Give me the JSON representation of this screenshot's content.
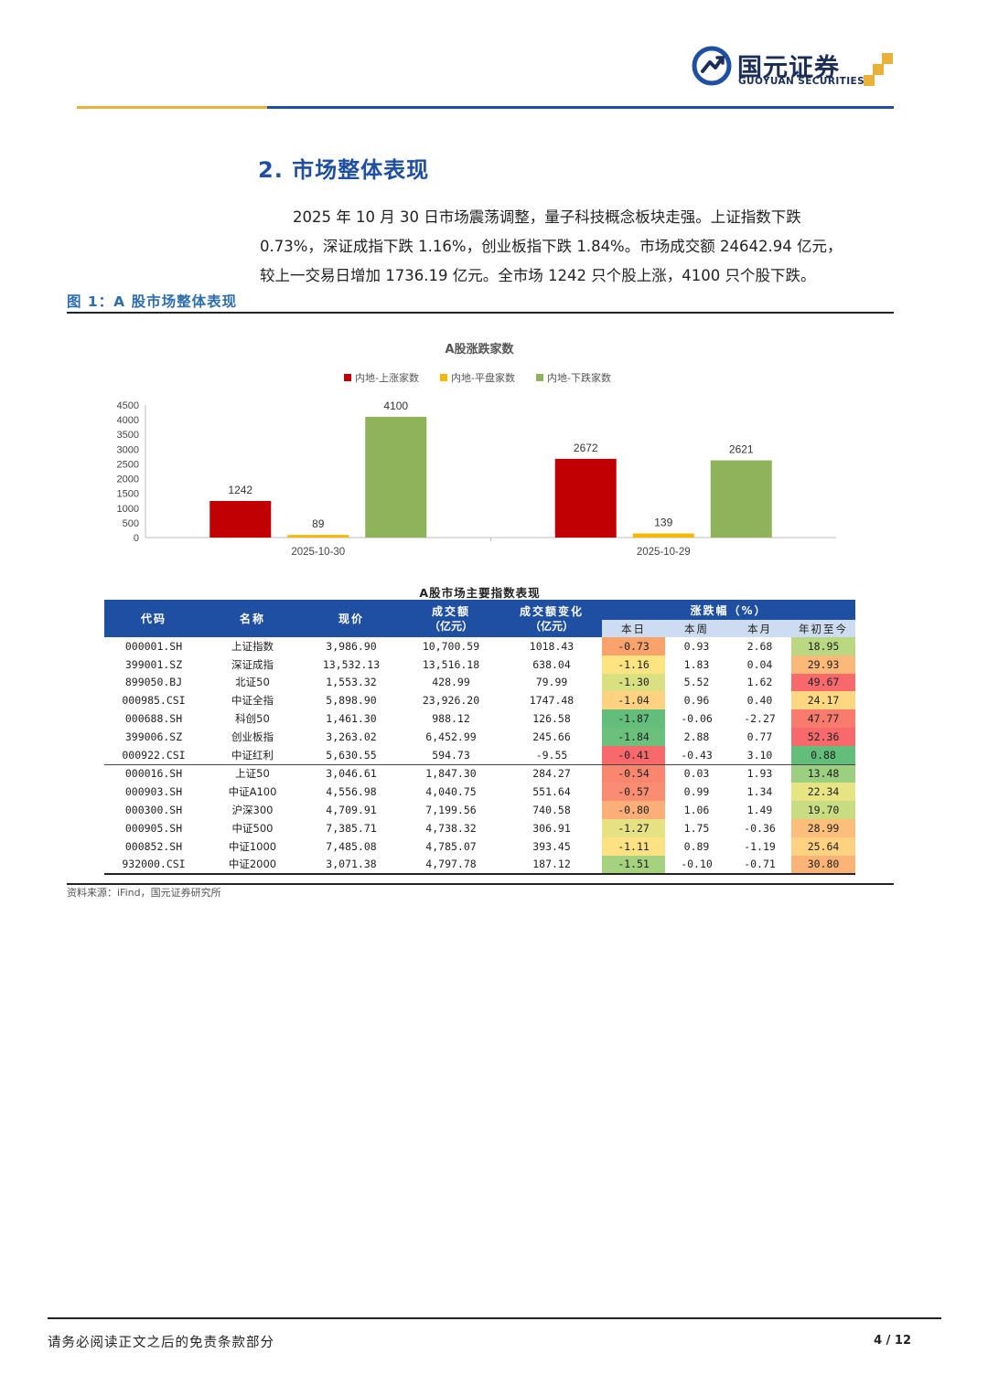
{
  "header": {
    "logo_cn": "国元证券",
    "logo_en": "GUOYUAN SECURITIES",
    "colors": {
      "navy": "#1b2e5a",
      "blue": "#1f4fa0",
      "gold": "#e8b23a"
    }
  },
  "section": {
    "title": "2. 市场整体表现",
    "paragraph_lines": [
      "2025 年 10 月 30 日市场震荡调整，量子科技概念板块走强。上证指数下跌",
      "0.73%，深证成指下跌 1.16%，创业板指下跌 1.84%。市场成交额 24642.94 亿元，",
      "较上一交易日增加 1736.19 亿元。全市场 1242 只个股上涨，4100 只个股下跌。"
    ]
  },
  "figure": {
    "caption": "图 1：A 股市场整体表现"
  },
  "chart_data": {
    "type": "bar",
    "title": "A股涨跌家数",
    "categories": [
      "2025-10-30",
      "2025-10-29"
    ],
    "series": [
      {
        "name": "内地-上涨家数",
        "values": [
          1242,
          2672
        ],
        "color": "#c00000"
      },
      {
        "name": "内地-平盘家数",
        "values": [
          89,
          139
        ],
        "color": "#f5b800"
      },
      {
        "name": "内地-下跌家数",
        "values": [
          4100,
          2621
        ],
        "color": "#8fb35a"
      }
    ],
    "ylim": [
      0,
      4500
    ],
    "yticks": [
      0,
      500,
      1000,
      1500,
      2000,
      2500,
      3000,
      3500,
      4000,
      4500
    ],
    "legend": "top",
    "grid": false,
    "data_labels": true
  },
  "table": {
    "title": "A股市场主要指数表现",
    "headers": {
      "code": "代码",
      "name": "名称",
      "price": "现价",
      "turnover": "成交额",
      "turnover_unit": "（亿元）",
      "change": "成交额变化",
      "change_unit": "（亿元）",
      "pct": "涨跌幅（%）",
      "day": "本日",
      "week": "本周",
      "month": "本月",
      "ytd": "年初至今"
    },
    "rows": [
      {
        "code": "000001.SH",
        "name": "上证指数",
        "price": "3,986.90",
        "turnover": "10,700.59",
        "change": "1018.43",
        "day": "-0.73",
        "week": "0.93",
        "month": "2.68",
        "ytd": "18.95",
        "day_color": "#f9a26c",
        "ytd_color": "#bad881"
      },
      {
        "code": "399001.SZ",
        "name": "深证成指",
        "price": "13,532.13",
        "turnover": "13,516.18",
        "change": "638.04",
        "day": "-1.16",
        "week": "1.83",
        "month": "0.04",
        "ytd": "29.93",
        "day_color": "#fde481",
        "ytd_color": "#fcb878"
      },
      {
        "code": "899050.BJ",
        "name": "北证50",
        "price": "1,553.32",
        "turnover": "428.99",
        "change": "79.99",
        "day": "-1.30",
        "week": "5.52",
        "month": "1.62",
        "ytd": "49.67",
        "day_color": "#d8e081",
        "ytd_color": "#f8696b"
      },
      {
        "code": "000985.CSI",
        "name": "中证全指",
        "price": "5,898.90",
        "turnover": "23,926.20",
        "change": "1747.48",
        "day": "-1.04",
        "week": "0.96",
        "month": "0.40",
        "ytd": "24.17",
        "day_color": "#fed280",
        "ytd_color": "#fed880"
      },
      {
        "code": "000688.SH",
        "name": "科创50",
        "price": "1,461.30",
        "turnover": "988.12",
        "change": "126.58",
        "day": "-1.87",
        "week": "-0.06",
        "month": "-2.27",
        "ytd": "47.77",
        "day_color": "#63be7b",
        "ytd_color": "#f87b6e"
      },
      {
        "code": "399006.SZ",
        "name": "创业板指",
        "price": "3,263.02",
        "turnover": "6,452.99",
        "change": "245.66",
        "day": "-1.84",
        "week": "2.88",
        "month": "0.77",
        "ytd": "52.36",
        "day_color": "#6bc17c",
        "ytd_color": "#f8696b"
      },
      {
        "code": "000922.CSI",
        "name": "中证红利",
        "price": "5,630.55",
        "turnover": "594.73",
        "change": "-9.55",
        "day": "-0.41",
        "week": "-0.43",
        "month": "3.10",
        "ytd": "0.88",
        "day_color": "#f8696b",
        "ytd_color": "#63be7b"
      },
      {
        "code": "000016.SH",
        "name": "上证50",
        "price": "3,046.61",
        "turnover": "1,847.30",
        "change": "284.27",
        "day": "-0.54",
        "week": "0.03",
        "month": "1.93",
        "ytd": "13.48",
        "day_color": "#f98770",
        "ytd_color": "#9ccf7f"
      },
      {
        "code": "000903.SH",
        "name": "中证A100",
        "price": "4,556.98",
        "turnover": "4,040.75",
        "change": "551.64",
        "day": "-0.57",
        "week": "0.99",
        "month": "1.34",
        "ytd": "22.34",
        "day_color": "#f98c71",
        "ytd_color": "#e7e483"
      },
      {
        "code": "000300.SH",
        "name": "沪深300",
        "price": "4,709.91",
        "turnover": "7,199.56",
        "change": "740.58",
        "day": "-0.80",
        "week": "1.06",
        "month": "1.49",
        "ytd": "19.70",
        "day_color": "#fbae77",
        "ytd_color": "#c8dc82"
      },
      {
        "code": "000905.SH",
        "name": "中证500",
        "price": "7,385.71",
        "turnover": "4,738.32",
        "change": "306.91",
        "day": "-1.27",
        "week": "1.75",
        "month": "-0.36",
        "ytd": "28.99",
        "day_color": "#e6e283",
        "ytd_color": "#fcbf7b"
      },
      {
        "code": "000852.SH",
        "name": "中证1000",
        "price": "7,485.08",
        "turnover": "4,785.07",
        "change": "393.45",
        "day": "-1.11",
        "week": "0.89",
        "month": "-1.19",
        "ytd": "25.64",
        "day_color": "#fee182",
        "ytd_color": "#fed280"
      },
      {
        "code": "932000.CSI",
        "name": "中证2000",
        "price": "3,071.38",
        "turnover": "4,797.78",
        "change": "187.12",
        "day": "-1.51",
        "week": "-0.10",
        "month": "-0.71",
        "ytd": "30.80",
        "day_color": "#a6d17f",
        "ytd_color": "#fcb377"
      }
    ]
  },
  "source": "资料来源：iFind，国元证券研究所",
  "footer": {
    "disclaimer": "请务必阅读正文之后的免责条款部分",
    "page": "4 / 12"
  }
}
